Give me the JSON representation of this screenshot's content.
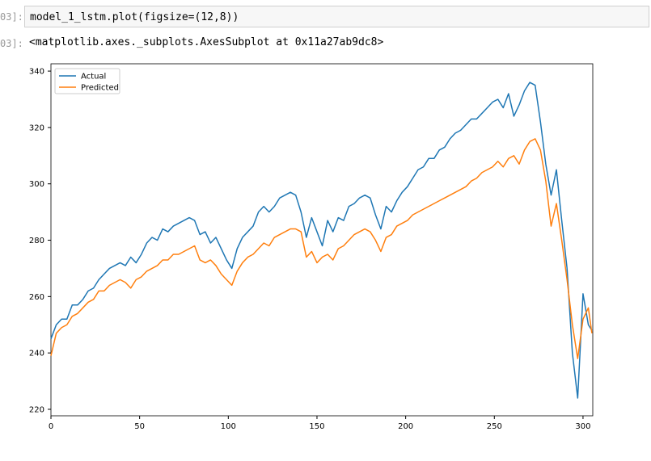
{
  "input_prompt": "03]:",
  "code": "model_1_lstm.plot(figsize=(12,8))",
  "output_prompt": "03]:",
  "output_text": "<matplotlib.axes._subplots.AxesSubplot at 0x11a27ab9dc8>",
  "chart_data": {
    "type": "line",
    "x": [
      0,
      3,
      6,
      9,
      12,
      15,
      18,
      21,
      24,
      27,
      30,
      33,
      36,
      39,
      42,
      45,
      48,
      51,
      54,
      57,
      60,
      63,
      66,
      69,
      72,
      75,
      78,
      81,
      84,
      87,
      90,
      93,
      96,
      99,
      102,
      105,
      108,
      111,
      114,
      117,
      120,
      123,
      126,
      129,
      132,
      135,
      138,
      141,
      144,
      147,
      150,
      153,
      156,
      159,
      162,
      165,
      168,
      171,
      174,
      177,
      180,
      183,
      186,
      189,
      192,
      195,
      198,
      201,
      204,
      207,
      210,
      213,
      216,
      219,
      222,
      225,
      228,
      231,
      234,
      237,
      240,
      243,
      246,
      249,
      252,
      255,
      258,
      261,
      264,
      267,
      270,
      273,
      276,
      279,
      282,
      285,
      288,
      291,
      294,
      297,
      300,
      303,
      305
    ],
    "series": [
      {
        "name": "Actual",
        "color": "#1f77b4",
        "values": [
          245,
          250,
          252,
          252,
          257,
          257,
          259,
          262,
          263,
          266,
          268,
          270,
          271,
          272,
          271,
          274,
          272,
          275,
          279,
          281,
          280,
          284,
          283,
          285,
          286,
          287,
          288,
          287,
          282,
          283,
          279,
          281,
          277,
          273,
          270,
          277,
          281,
          283,
          285,
          290,
          292,
          290,
          292,
          295,
          296,
          297,
          296,
          290,
          281,
          288,
          283,
          278,
          287,
          283,
          288,
          287,
          292,
          293,
          295,
          296,
          295,
          289,
          284,
          292,
          290,
          294,
          297,
          299,
          302,
          305,
          306,
          309,
          309,
          312,
          313,
          316,
          318,
          319,
          321,
          323,
          323,
          325,
          327,
          329,
          330,
          327,
          332,
          324,
          328,
          333,
          336,
          335,
          322,
          307,
          296,
          305,
          287,
          270,
          240,
          224,
          261,
          250,
          248
        ]
      },
      {
        "name": "Predicted",
        "color": "#ff7f0e",
        "values": [
          239,
          247,
          249,
          250,
          253,
          254,
          256,
          258,
          259,
          262,
          262,
          264,
          265,
          266,
          265,
          263,
          266,
          267,
          269,
          270,
          271,
          273,
          273,
          275,
          275,
          276,
          277,
          278,
          273,
          272,
          273,
          271,
          268,
          266,
          264,
          269,
          272,
          274,
          275,
          277,
          279,
          278,
          281,
          282,
          283,
          284,
          284,
          283,
          274,
          276,
          272,
          274,
          275,
          273,
          277,
          278,
          280,
          282,
          283,
          284,
          283,
          280,
          276,
          281,
          282,
          285,
          286,
          287,
          289,
          290,
          291,
          292,
          293,
          294,
          295,
          296,
          297,
          298,
          299,
          301,
          302,
          304,
          305,
          306,
          308,
          306,
          309,
          310,
          307,
          312,
          315,
          316,
          312,
          301,
          285,
          293,
          280,
          266,
          250,
          238,
          252,
          256,
          247
        ]
      }
    ],
    "xlim": [
      0,
      305.5
    ],
    "ylim": [
      217.7,
      342.6
    ],
    "xticks": [
      0,
      50,
      100,
      150,
      200,
      250,
      300
    ],
    "yticks": [
      220,
      240,
      260,
      280,
      300,
      320,
      340
    ],
    "grid": false,
    "legend": "upper left"
  }
}
